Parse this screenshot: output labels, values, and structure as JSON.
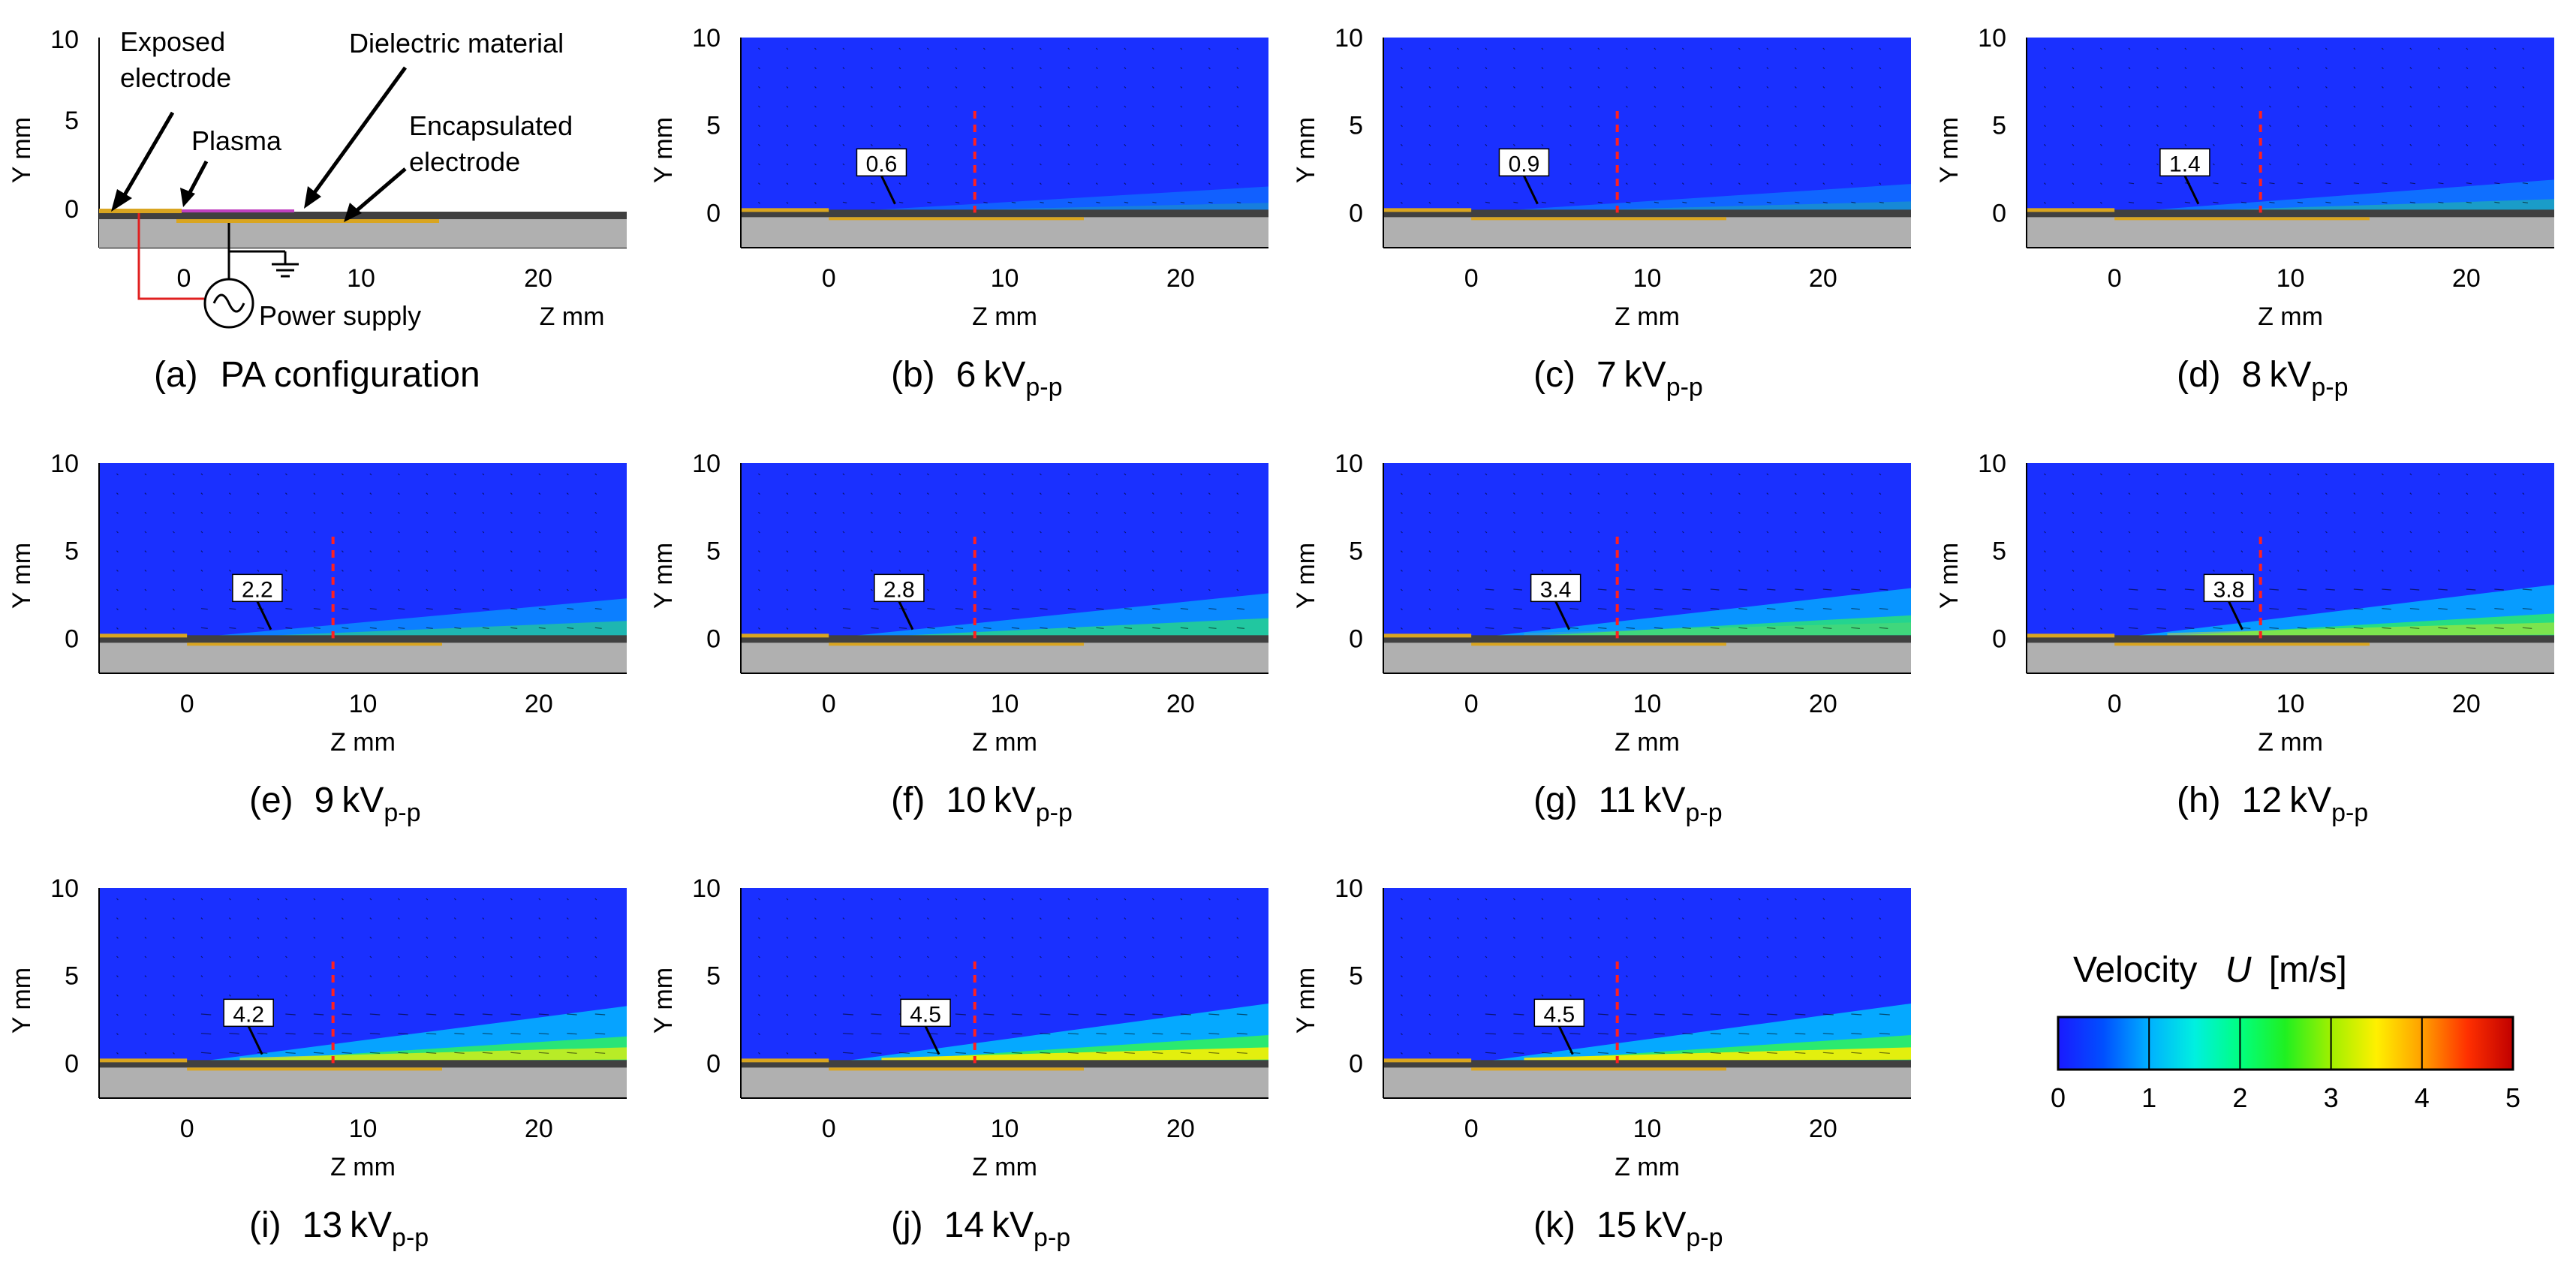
{
  "figure": {
    "axes": {
      "xlabel": "Z mm",
      "ylabel": "Y mm",
      "xlim": [
        -5,
        25
      ],
      "ylim": [
        -2,
        10
      ],
      "xticks": [
        "0",
        "10",
        "20"
      ],
      "yticks": [
        "10",
        "5",
        "0"
      ]
    }
  },
  "config_panel": {
    "caption_id": "(a)",
    "caption_text": "PA configuration",
    "labels": {
      "exposed": [
        "Exposed",
        "electrode"
      ],
      "dielectric": "Dielectric material",
      "plasma": "Plasma",
      "encapsulated": [
        "Encapsulated",
        "electrode"
      ],
      "power": "Power supply"
    },
    "colors": {
      "plasma": "#c040c0",
      "wire": "#e02020",
      "electrode": "#d9a520"
    }
  },
  "colorbar": {
    "title": "Velocity",
    "var": "U",
    "unit": "[m/s]",
    "ticks": [
      "0",
      "1",
      "2",
      "3",
      "4",
      "5"
    ],
    "colors": [
      "#1a1aff",
      "#0080ff",
      "#00e0ff",
      "#00ff90",
      "#40f020",
      "#c8f000",
      "#ffff00",
      "#ffa500",
      "#ff3000",
      "#c00000"
    ]
  },
  "chart_data": [
    {
      "id": "(b)",
      "voltage": "6",
      "unit": "kV",
      "sub": "p-p",
      "max_velocity": "0.6",
      "profile_z": 8.3
    },
    {
      "id": "(c)",
      "voltage": "7",
      "unit": "kV",
      "sub": "p-p",
      "max_velocity": "0.9",
      "profile_z": 8.3
    },
    {
      "id": "(d)",
      "voltage": "8",
      "unit": "kV",
      "sub": "p-p",
      "max_velocity": "1.4",
      "profile_z": 8.3
    },
    {
      "id": "(e)",
      "voltage": "9",
      "unit": "kV",
      "sub": "p-p",
      "max_velocity": "2.2",
      "profile_z": 8.3
    },
    {
      "id": "(f)",
      "voltage": "10",
      "unit": "kV",
      "sub": "p-p",
      "max_velocity": "2.8",
      "profile_z": 8.3
    },
    {
      "id": "(g)",
      "voltage": "11",
      "unit": "kV",
      "sub": "p-p",
      "max_velocity": "3.4",
      "profile_z": 8.3
    },
    {
      "id": "(h)",
      "voltage": "12",
      "unit": "kV",
      "sub": "p-p",
      "max_velocity": "3.8",
      "profile_z": 8.3
    },
    {
      "id": "(i)",
      "voltage": "13",
      "unit": "kV",
      "sub": "p-p",
      "max_velocity": "4.2",
      "profile_z": 8.3
    },
    {
      "id": "(j)",
      "voltage": "14",
      "unit": "kV",
      "sub": "p-p",
      "max_velocity": "4.5",
      "profile_z": 8.3
    },
    {
      "id": "(k)",
      "voltage": "15",
      "unit": "kV",
      "sub": "p-p",
      "max_velocity": "4.5",
      "profile_z": 8.3
    }
  ]
}
